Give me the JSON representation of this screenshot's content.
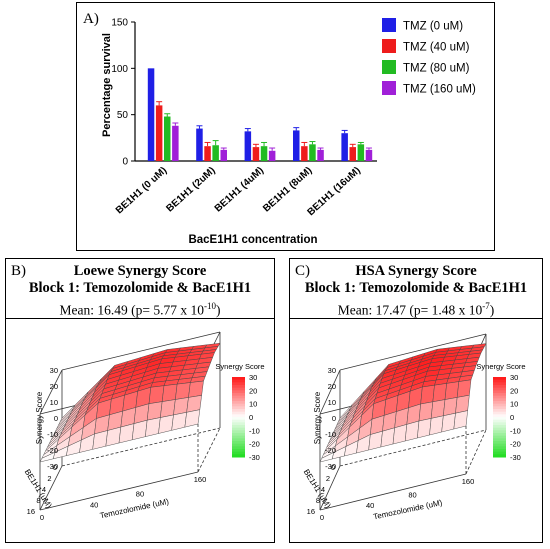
{
  "panelA": {
    "label": "A)",
    "chart_data": {
      "type": "bar",
      "categories": [
        "BE1H1 (0 uM)",
        "BE1H1 (2uM)",
        "BE1H1 (4uM)",
        "BE1H1 (8uM)",
        "BE1H1 (16uM)"
      ],
      "series": [
        {
          "name": "TMZ (0 uM)",
          "color": "#1f1fe6",
          "values": [
            100,
            35,
            32,
            33,
            30
          ],
          "errors": [
            0,
            3,
            3,
            3,
            3
          ]
        },
        {
          "name": "TMZ (40 uM)",
          "color": "#ee1c1c",
          "values": [
            60,
            16,
            15,
            16,
            15
          ],
          "errors": [
            4,
            4,
            3,
            4,
            3
          ]
        },
        {
          "name": "TMZ (80 uM)",
          "color": "#22bb22",
          "values": [
            48,
            17,
            16,
            18,
            18
          ],
          "errors": [
            3,
            5,
            4,
            3,
            2
          ]
        },
        {
          "name": "TMZ (160 uM)",
          "color": "#a020d8",
          "values": [
            38,
            12,
            11,
            12,
            12
          ],
          "errors": [
            3,
            2,
            3,
            2,
            2
          ]
        }
      ],
      "xlabel": "BacE1H1 concentration",
      "ylabel": "Percentage survival",
      "ylim": [
        0,
        150
      ],
      "yticks": [
        0,
        50,
        100,
        150
      ],
      "legend": "top-right"
    }
  },
  "panelB": {
    "label": "B)",
    "title1": "Loewe Synergy Score",
    "title2": "Block 1: Temozolomide & BacE1H1",
    "mean_prefix": "Mean: 16.49 (p= 5.77 x 10",
    "mean_exp": "-10",
    "mean_suffix": ")",
    "chart_data": {
      "type": "surface",
      "x_label": "Temozolomide (uM)",
      "y_label": "BE1H1 (uM)",
      "z_label": "Synergy Score",
      "x_ticks": [
        "0",
        "40",
        "80",
        "160"
      ],
      "y_ticks": [
        "0",
        "2",
        "4",
        "8",
        "16"
      ],
      "z_ticks": [
        "30",
        "20",
        "10",
        "0",
        "-10",
        "-20",
        "-30"
      ],
      "colorbar_label": "Synergy Score",
      "colorbar_ticks": [
        "30",
        "20",
        "10",
        "0",
        "-10",
        "-20",
        "-30"
      ],
      "zlim": [
        -30,
        30
      ],
      "z": [
        [
          0,
          0,
          0,
          0
        ],
        [
          0,
          22,
          24,
          20
        ],
        [
          0,
          24,
          26,
          22
        ],
        [
          0,
          26,
          28,
          24
        ],
        [
          0,
          25,
          27,
          23
        ]
      ]
    }
  },
  "panelC": {
    "label": "C)",
    "title1": "HSA Synergy Score",
    "title2": "Block 1: Temozolomide & BacE1H1",
    "mean_prefix": "Mean: 17.47 (p= 1.48 x 10",
    "mean_exp": "-7",
    "mean_suffix": ")",
    "chart_data": {
      "type": "surface",
      "x_label": "Temozolomide (uM)",
      "y_label": "BE1H1 (uM)",
      "z_label": "Synergy Score",
      "x_ticks": [
        "0",
        "40",
        "80",
        "160"
      ],
      "y_ticks": [
        "0",
        "2",
        "4",
        "8",
        "16"
      ],
      "z_ticks": [
        "30",
        "20",
        "10",
        "0",
        "-10",
        "-20",
        "-30"
      ],
      "colorbar_label": "Synergy Score",
      "colorbar_ticks": [
        "30",
        "20",
        "10",
        "0",
        "-10",
        "-20",
        "-30"
      ],
      "zlim": [
        -30,
        30
      ],
      "z": [
        [
          0,
          0,
          0,
          0
        ],
        [
          0,
          22,
          25,
          22
        ],
        [
          0,
          25,
          28,
          24
        ],
        [
          0,
          27,
          29,
          25
        ],
        [
          0,
          26,
          28,
          24
        ]
      ]
    }
  }
}
